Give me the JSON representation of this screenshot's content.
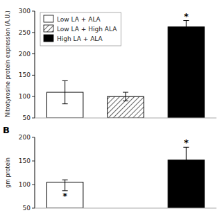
{
  "chart_data": [
    {
      "type": "bar",
      "ylabel": "Nitrotyrosine protein expression (A.U.)",
      "ylim": [
        50,
        300
      ],
      "yticks": [
        50,
        100,
        150,
        200,
        250,
        300
      ],
      "legend": "upper left",
      "series": [
        {
          "name": "Low LA + ALA",
          "color": "white",
          "values": [
            110
          ],
          "errors": [
            27
          ]
        },
        {
          "name": "Low LA + High ALA",
          "color": "white",
          "values": [
            100
          ],
          "errors": [
            10
          ]
        },
        {
          "name": "High LA + ALA",
          "color": "black",
          "values": [
            263
          ],
          "errors": [
            15
          ]
        }
      ],
      "annotations": [
        {
          "text": "*",
          "series": 2,
          "index": 0,
          "position": "above"
        }
      ]
    },
    {
      "type": "bar",
      "title": "B",
      "ylabel": "gm protein",
      "ylim": [
        50,
        200
      ],
      "yticks": [
        50,
        100,
        150,
        200
      ],
      "series": [
        {
          "color": "white",
          "values": [
            105
          ],
          "errors_minus": [
            18
          ],
          "errors_plus": [
            5
          ]
        },
        {
          "color": "white",
          "values": [
            null
          ]
        },
        {
          "color": "black",
          "values": [
            152
          ],
          "errors": [
            27
          ]
        }
      ],
      "annotations": [
        {
          "text": "*",
          "series": 0,
          "index": 0,
          "position": "below"
        },
        {
          "text": "*",
          "series": 2,
          "index": 0,
          "position": "above"
        }
      ]
    }
  ]
}
